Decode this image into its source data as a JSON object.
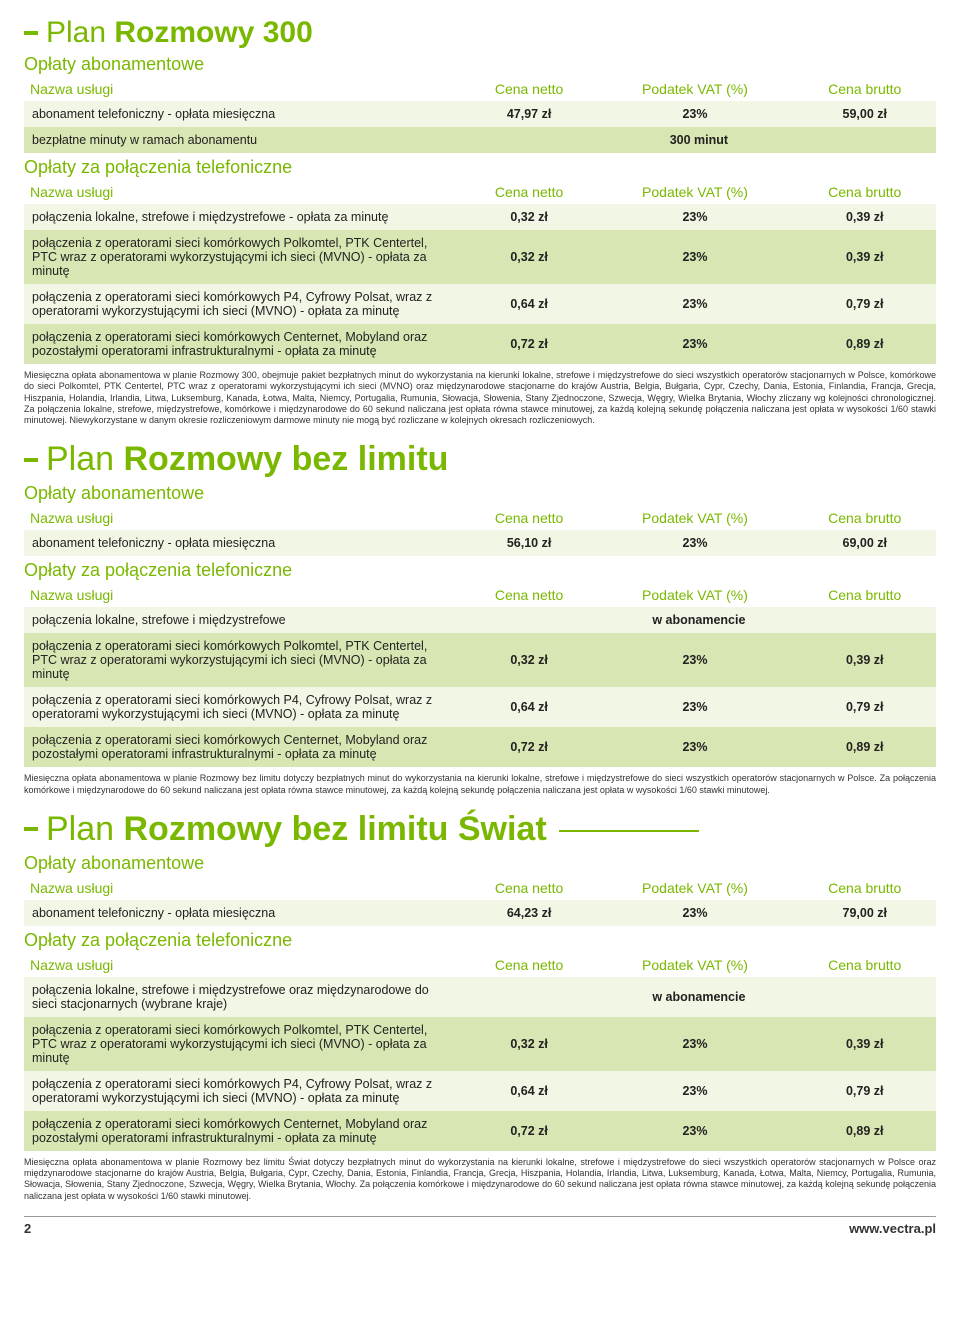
{
  "colors": {
    "accent": "#7ab800",
    "row_light": "#f2f6e4",
    "row_dark": "#d8e6b3",
    "text": "#333333"
  },
  "column_headers": {
    "name": "Nazwa usługi",
    "net": "Cena netto",
    "vat": "Podatek VAT (%)",
    "gross": "Cena brutto"
  },
  "section_labels": {
    "fees": "Opłaty abonamentowe",
    "calls": "Opłaty za połączenia telefoniczne"
  },
  "in_subscription": "w abonamencie",
  "plan1": {
    "title_plain": "Plan ",
    "title_bold": "Rozmowy 300",
    "fees_rows": [
      {
        "desc": "abonament telefoniczny - opłata miesięczna",
        "net": "47,97 zł",
        "vat": "23%",
        "gross": "59,00 zł"
      },
      {
        "desc": "bezpłatne minuty w ramach abonamentu",
        "span": "300 minut"
      }
    ],
    "calls_rows": [
      {
        "desc": "połączenia lokalne, strefowe i międzystrefowe - opłata za minutę",
        "net": "0,32 zł",
        "vat": "23%",
        "gross": "0,39 zł"
      },
      {
        "desc": "połączenia z operatorami sieci komórkowych Polkomtel, PTK Centertel, PTC wraz z operatorami wykorzystującymi ich sieci (MVNO) - opłata za minutę",
        "net": "0,32 zł",
        "vat": "23%",
        "gross": "0,39 zł"
      },
      {
        "desc": "połączenia z operatorami sieci komórkowych P4, Cyfrowy Polsat, wraz z operatorami wykorzystującymi ich sieci (MVNO) - opłata za minutę",
        "net": "0,64 zł",
        "vat": "23%",
        "gross": "0,79 zł"
      },
      {
        "desc": "połączenia z operatorami sieci komórkowych Centernet, Mobyland oraz pozostałymi operatorami infrastrukturalnymi - opłata za minutę",
        "net": "0,72 zł",
        "vat": "23%",
        "gross": "0,89 zł"
      }
    ],
    "note": "Miesięczna opłata abonamentowa w planie Rozmowy 300, obejmuje pakiet bezpłatnych minut do wykorzystania na kierunki lokalne, strefowe i międzystrefowe do sieci wszystkich operatorów stacjonarnych w Polsce, komórkowe do sieci Polkomtel, PTK Centertel, PTC wraz z operatorami wykorzystującymi ich sieci (MVNO) oraz międzynarodowe stacjonarne do krajów Austria, Belgia, Bułgaria, Cypr, Czechy, Dania, Estonia, Finlandia, Francja, Grecja, Hiszpania, Holandia, Irlandia, Litwa, Luksemburg, Kanada, Łotwa, Malta, Niemcy, Portugalia, Rumunia, Słowacja, Słowenia, Stany Zjednoczone, Szwecja, Węgry, Wielka Brytania, Włochy zliczany wg kolejności chronologicznej. Za połączenia lokalne, strefowe, międzystrefowe, komórkowe i międzynarodowe do 60 sekund naliczana jest opłata równa stawce minutowej, za każdą kolejną sekundę połączenia naliczana jest opłata w wysokości 1/60 stawki minutowej. Niewykorzystane w danym okresie rozliczeniowym darmowe minuty nie mogą być rozliczane w kolejnych okresach rozliczeniowych."
  },
  "plan2": {
    "title_plain": "Plan ",
    "title_bold": "Rozmowy bez limitu",
    "fees_rows": [
      {
        "desc": "abonament telefoniczny - opłata miesięczna",
        "net": "56,10 zł",
        "vat": "23%",
        "gross": "69,00 zł"
      }
    ],
    "calls_rows": [
      {
        "desc": "połączenia lokalne, strefowe i międzystrefowe",
        "in_sub": true
      },
      {
        "desc": "połączenia z operatorami sieci komórkowych Polkomtel, PTK Centertel, PTC wraz z operatorami wykorzystującymi ich sieci (MVNO) - opłata za minutę",
        "net": "0,32 zł",
        "vat": "23%",
        "gross": "0,39 zł"
      },
      {
        "desc": "połączenia z operatorami sieci komórkowych P4, Cyfrowy Polsat, wraz z operatorami wykorzystującymi ich sieci (MVNO) - opłata za minutę",
        "net": "0,64 zł",
        "vat": "23%",
        "gross": "0,79 zł"
      },
      {
        "desc": "połączenia z operatorami sieci komórkowych Centernet, Mobyland oraz pozostałymi operatorami infrastrukturalnymi - opłata za minutę",
        "net": "0,72 zł",
        "vat": "23%",
        "gross": "0,89 zł"
      }
    ],
    "note": "Miesięczna opłata abonamentowa w planie Rozmowy bez limitu dotyczy bezpłatnych minut do wykorzystania na kierunki lokalne, strefowe i międzystrefowe do sieci wszystkich operatorów stacjonarnych w Polsce. Za połączenia komórkowe i międzynarodowe do 60 sekund naliczana jest opłata równa stawce minutowej, za każdą kolejną sekundę połączenia naliczana jest opłata w wysokości 1/60 stawki minutowej."
  },
  "plan3": {
    "title_plain": "Plan ",
    "title_bold": "Rozmowy bez limitu Świat",
    "fees_rows": [
      {
        "desc": "abonament telefoniczny - opłata miesięczna",
        "net": "64,23 zł",
        "vat": "23%",
        "gross": "79,00 zł"
      }
    ],
    "calls_rows": [
      {
        "desc": "połączenia lokalne, strefowe i międzystrefowe oraz międzynarodowe do sieci stacjonarnych (wybrane kraje)",
        "in_sub": true
      },
      {
        "desc": "połączenia z operatorami sieci komórkowych Polkomtel, PTK Centertel, PTC wraz z operatorami wykorzystującymi ich sieci (MVNO) - opłata za minutę",
        "net": "0,32 zł",
        "vat": "23%",
        "gross": "0,39 zł"
      },
      {
        "desc": "połączenia z operatorami sieci komórkowych P4, Cyfrowy Polsat, wraz z operatorami wykorzystującymi ich sieci (MVNO) - opłata za minutę",
        "net": "0,64 zł",
        "vat": "23%",
        "gross": "0,79 zł"
      },
      {
        "desc": "połączenia z operatorami sieci komórkowych Centernet, Mobyland oraz pozostałymi operatorami infrastrukturalnymi - opłata za minutę",
        "net": "0,72 zł",
        "vat": "23%",
        "gross": "0,89 zł"
      }
    ],
    "note": "Miesięczna opłata abonamentowa w planie Rozmowy bez limitu Świat dotyczy bezpłatnych minut do wykorzystania na kierunki lokalne, strefowe i międzystrefowe do sieci wszystkich operatorów stacjonarnych w Polsce oraz międzynarodowe stacjonarne do krajów Austria, Belgia, Bułgaria, Cypr, Czechy, Dania, Estonia, Finlandia, Francja, Grecja, Hiszpania, Holandia, Irlandia, Litwa, Luksemburg, Kanada, Łotwa, Malta, Niemcy, Portugalia, Rumunia, Słowacja, Słowenia, Stany Zjednoczone, Szwecja, Węgry, Wielka Brytania, Włochy. Za połączenia komórkowe i międzynarodowe do 60 sekund naliczana jest opłata równa stawce minutowej, za każdą kolejną sekundę połączenia naliczana jest opłata w wysokości 1/60 stawki minutowej."
  },
  "footer": {
    "page": "2",
    "url": "www.vectra.pl"
  }
}
